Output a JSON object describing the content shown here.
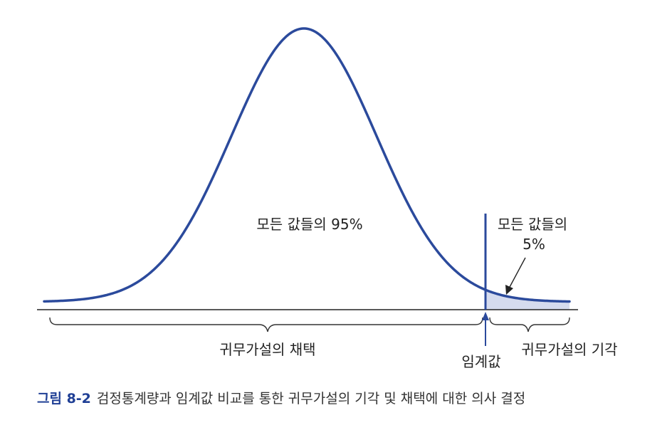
{
  "labels": {
    "center": "모든 값들의 95%",
    "tail_line1": "모든 값들의",
    "tail_line2": "5%",
    "accept": "귀무가설의 채택",
    "critical": "임계값",
    "reject": "귀무가설의 기각"
  },
  "caption": {
    "number": "그림 8-2",
    "text": "검정통계량과 임계값 비교를 통한 귀무가설의 기각 및 채택에 대한 의사 결정"
  },
  "colors": {
    "curve": "#2b4a9c",
    "shade": "#d5dbee",
    "axis": "#222222",
    "caption_accent": "#1f3f95"
  }
}
